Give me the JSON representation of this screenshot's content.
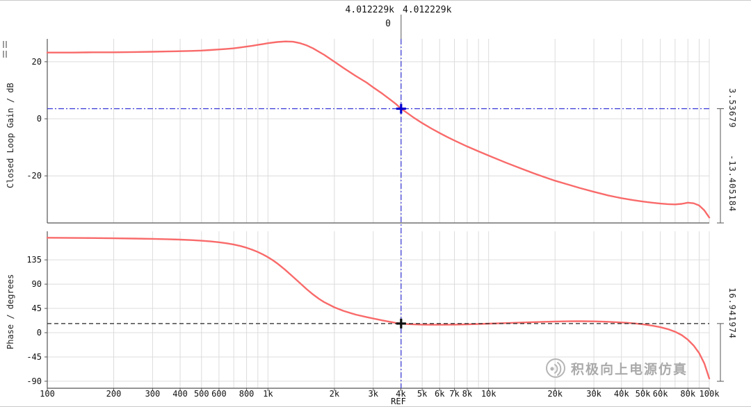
{
  "colors": {
    "curve": "#f96a6a",
    "cursor_blue": "#3434d6",
    "marker_blue": "#0000d0",
    "marker_black": "#111111",
    "grid": "#dcdcdc",
    "axis": "#555555",
    "ref_dash": "#222222"
  },
  "cursor_readout": {
    "freq_a": "4.012229k",
    "freq_b": "4.012229k",
    "delta": "0",
    "ref": "REF",
    "gain_value": "3.53679",
    "gain_delta": "-13.405184",
    "phase_value": "16.941974"
  },
  "watermark": {
    "text": "积极向上电源仿真"
  },
  "xaxis": {
    "xscale": "log",
    "xlim": [
      100,
      100000
    ],
    "ticks": [
      {
        "f": 100,
        "label": "100"
      },
      {
        "f": 200,
        "label": "200"
      },
      {
        "f": 300,
        "label": "300"
      },
      {
        "f": 400,
        "label": "400"
      },
      {
        "f": 500,
        "label": "500"
      },
      {
        "f": 600,
        "label": "600"
      },
      {
        "f": 700,
        "label": ""
      },
      {
        "f": 800,
        "label": "800"
      },
      {
        "f": 900,
        "label": ""
      },
      {
        "f": 1000,
        "label": "1k"
      },
      {
        "f": 2000,
        "label": "2k"
      },
      {
        "f": 3000,
        "label": "3k"
      },
      {
        "f": 4000,
        "label": "4k"
      },
      {
        "f": 5000,
        "label": "5k"
      },
      {
        "f": 6000,
        "label": "6k"
      },
      {
        "f": 7000,
        "label": "7k"
      },
      {
        "f": 8000,
        "label": "8k"
      },
      {
        "f": 9000,
        "label": ""
      },
      {
        "f": 10000,
        "label": "10k"
      },
      {
        "f": 20000,
        "label": "20k"
      },
      {
        "f": 30000,
        "label": "30k"
      },
      {
        "f": 40000,
        "label": "40k"
      },
      {
        "f": 50000,
        "label": "50k"
      },
      {
        "f": 60000,
        "label": "60k"
      },
      {
        "f": 70000,
        "label": ""
      },
      {
        "f": 80000,
        "label": "80k"
      },
      {
        "f": 90000,
        "label": ""
      },
      {
        "f": 100000,
        "label": "100k"
      }
    ]
  },
  "chart_data": [
    {
      "type": "line",
      "title": "Closed Loop Gain vs Frequency",
      "ylabel": "Closed Loop Gain / dB",
      "xlabel": "",
      "xscale": "log",
      "xlim": [
        100,
        100000
      ],
      "ylim": [
        -36.5,
        28
      ],
      "yticks": [
        20,
        0,
        -20
      ],
      "grid": true,
      "cursor": {
        "x": 4012.229,
        "y": 3.53679
      },
      "series": [
        {
          "name": "closed-loop-gain",
          "color": "#f96a6a",
          "points": [
            [
              100,
              23.2
            ],
            [
              130,
              23.2
            ],
            [
              160,
              23.3
            ],
            [
              200,
              23.3
            ],
            [
              250,
              23.4
            ],
            [
              300,
              23.5
            ],
            [
              350,
              23.6
            ],
            [
              400,
              23.7
            ],
            [
              450,
              23.8
            ],
            [
              500,
              23.9
            ],
            [
              550,
              24.1
            ],
            [
              600,
              24.3
            ],
            [
              650,
              24.5
            ],
            [
              700,
              24.7
            ],
            [
              750,
              25.0
            ],
            [
              800,
              25.3
            ],
            [
              850,
              25.6
            ],
            [
              900,
              25.9
            ],
            [
              950,
              26.2
            ],
            [
              1000,
              26.5
            ],
            [
              1100,
              26.9
            ],
            [
              1200,
              27.1
            ],
            [
              1300,
              27.0
            ],
            [
              1400,
              26.5
            ],
            [
              1500,
              25.7
            ],
            [
              1600,
              24.7
            ],
            [
              1800,
              22.4
            ],
            [
              2000,
              20.0
            ],
            [
              2200,
              17.8
            ],
            [
              2500,
              15.0
            ],
            [
              2800,
              12.7
            ],
            [
              3000,
              11.0
            ],
            [
              3300,
              8.8
            ],
            [
              3600,
              6.6
            ],
            [
              3800,
              5.2
            ],
            [
              4012.229,
              3.53679
            ],
            [
              4300,
              1.9
            ],
            [
              4600,
              0.3
            ],
            [
              5000,
              -1.5
            ],
            [
              5500,
              -3.4
            ],
            [
              6000,
              -5.0
            ],
            [
              6500,
              -6.4
            ],
            [
              7000,
              -7.6
            ],
            [
              8000,
              -9.7
            ],
            [
              9000,
              -11.4
            ],
            [
              10000,
              -12.9
            ],
            [
              12000,
              -15.4
            ],
            [
              14000,
              -17.4
            ],
            [
              16000,
              -19.1
            ],
            [
              18000,
              -20.5
            ],
            [
              20000,
              -21.7
            ],
            [
              23000,
              -23.1
            ],
            [
              26000,
              -24.3
            ],
            [
              30000,
              -25.6
            ],
            [
              35000,
              -26.9
            ],
            [
              40000,
              -27.8
            ],
            [
              45000,
              -28.5
            ],
            [
              50000,
              -29.0
            ],
            [
              55000,
              -29.4
            ],
            [
              60000,
              -29.7
            ],
            [
              65000,
              -29.9
            ],
            [
              70000,
              -30.0
            ],
            [
              75000,
              -29.8
            ],
            [
              80000,
              -29.4
            ],
            [
              85000,
              -29.6
            ],
            [
              90000,
              -30.4
            ],
            [
              95000,
              -32.1
            ],
            [
              100000,
              -34.6
            ]
          ]
        }
      ]
    },
    {
      "type": "line",
      "title": "Phase vs Frequency",
      "ylabel": "Phase / degrees",
      "xlabel": "",
      "xscale": "log",
      "xlim": [
        100,
        100000
      ],
      "ylim": [
        -103,
        188
      ],
      "yticks": [
        135,
        90,
        45,
        0,
        -45,
        -90
      ],
      "grid": true,
      "cursor": {
        "x": 4012.229,
        "y": 16.941974
      },
      "ref_line_y": 16.941974,
      "series": [
        {
          "name": "phase",
          "color": "#f96a6a",
          "points": [
            [
              100,
              176
            ],
            [
              150,
              175.5
            ],
            [
              200,
              175
            ],
            [
              250,
              174.5
            ],
            [
              300,
              174
            ],
            [
              350,
              173.3
            ],
            [
              400,
              172.5
            ],
            [
              450,
              171.6
            ],
            [
              500,
              170.5
            ],
            [
              550,
              169.2
            ],
            [
              600,
              167.6
            ],
            [
              650,
              165.7
            ],
            [
              700,
              163.4
            ],
            [
              750,
              160.7
            ],
            [
              800,
              157.5
            ],
            [
              850,
              153.8
            ],
            [
              900,
              149.6
            ],
            [
              950,
              145.0
            ],
            [
              1000,
              140.0
            ],
            [
              1050,
              134.5
            ],
            [
              1100,
              128.6
            ],
            [
              1150,
              122.5
            ],
            [
              1200,
              116.2
            ],
            [
              1300,
              103.5
            ],
            [
              1400,
              91.5
            ],
            [
              1500,
              80.5
            ],
            [
              1600,
              71.0
            ],
            [
              1700,
              63.0
            ],
            [
              1800,
              56.5
            ],
            [
              2000,
              47.0
            ],
            [
              2200,
              40.5
            ],
            [
              2500,
              33.5
            ],
            [
              2800,
              28.8
            ],
            [
              3000,
              26.3
            ],
            [
              3300,
              22.8
            ],
            [
              3600,
              19.8
            ],
            [
              3800,
              18.2
            ],
            [
              4012.229,
              16.941974
            ],
            [
              4300,
              15.9
            ],
            [
              4600,
              15.3
            ],
            [
              5000,
              14.9
            ],
            [
              5500,
              14.7
            ],
            [
              6000,
              14.7
            ],
            [
              7000,
              15.0
            ],
            [
              8000,
              15.5
            ],
            [
              9000,
              16.1
            ],
            [
              10000,
              16.7
            ],
            [
              12000,
              17.8
            ],
            [
              14000,
              18.8
            ],
            [
              16000,
              19.6
            ],
            [
              18000,
              20.2
            ],
            [
              20000,
              20.7
            ],
            [
              23000,
              21.1
            ],
            [
              26000,
              21.2
            ],
            [
              30000,
              21.0
            ],
            [
              34000,
              20.4
            ],
            [
              38000,
              19.5
            ],
            [
              42000,
              18.4
            ],
            [
              46000,
              17.1
            ],
            [
              50000,
              15.6
            ],
            [
              55000,
              13.2
            ],
            [
              60000,
              10.2
            ],
            [
              65000,
              6.6
            ],
            [
              70000,
              1.8
            ],
            [
              75000,
              -4.5
            ],
            [
              80000,
              -13.0
            ],
            [
              85000,
              -24.0
            ],
            [
              90000,
              -38.0
            ],
            [
              95000,
              -57.0
            ],
            [
              100000,
              -85.0
            ]
          ]
        }
      ]
    }
  ]
}
